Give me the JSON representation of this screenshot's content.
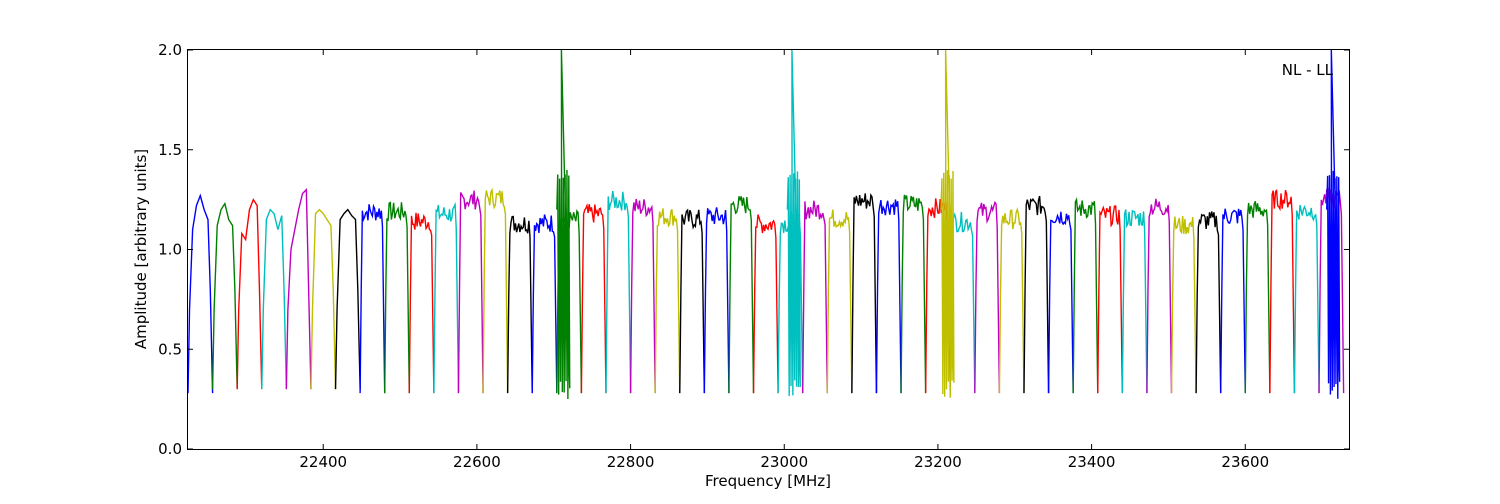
{
  "chart_data": {
    "type": "line",
    "title": "",
    "annotation": "NL - LL",
    "xlabel": "Frequency [MHz]",
    "ylabel": "Amplitude [arbitrary units]",
    "xlim": [
      22224,
      23735
    ],
    "ylim": [
      0.0,
      2.0
    ],
    "xticks": [
      22400,
      22600,
      22800,
      23000,
      23200,
      23400,
      23600
    ],
    "yticks": [
      0.0,
      0.5,
      1.0,
      1.5,
      2.0
    ],
    "xtick_labels": [
      "22400",
      "22600",
      "22800",
      "23000",
      "23200",
      "23400",
      "23600"
    ],
    "ytick_labels": [
      "0.0",
      "0.5",
      "1.0",
      "1.5",
      "2.0"
    ],
    "grid": false,
    "legend": "none",
    "color_cycle": [
      "#0000ff",
      "#008000",
      "#ff0000",
      "#00bfbf",
      "#bf00bf",
      "#bfbf00",
      "#000000"
    ],
    "band_start": 22224,
    "band_width": 32,
    "band_count": 47,
    "series": [
      {
        "color": "#0000ff",
        "x": [
          22224,
          22226,
          22230,
          22235,
          22240,
          22245,
          22250,
          22253,
          22256
        ],
        "y": [
          0.28,
          0.7,
          1.1,
          1.22,
          1.27,
          1.2,
          1.15,
          0.8,
          0.28
        ]
      },
      {
        "color": "#008000",
        "x": [
          22256,
          22258,
          22262,
          22267,
          22272,
          22277,
          22282,
          22285,
          22288
        ],
        "y": [
          0.3,
          0.7,
          1.12,
          1.2,
          1.23,
          1.15,
          1.12,
          0.8,
          0.3
        ]
      },
      {
        "color": "#ff0000",
        "x": [
          22288,
          22290,
          22294,
          22299,
          22304,
          22309,
          22314,
          22317,
          22320
        ],
        "y": [
          0.3,
          0.7,
          1.08,
          1.05,
          1.2,
          1.25,
          1.22,
          0.8,
          0.3
        ]
      },
      {
        "color": "#00bfbf",
        "x": [
          22320,
          22322,
          22326,
          22331,
          22336,
          22341,
          22346,
          22349,
          22352
        ],
        "y": [
          0.3,
          0.7,
          1.15,
          1.2,
          1.18,
          1.1,
          1.17,
          0.8,
          0.3
        ]
      },
      {
        "color": "#bf00bf",
        "x": [
          22352,
          22354,
          22358,
          22363,
          22368,
          22373,
          22378,
          22381,
          22384
        ],
        "y": [
          0.3,
          0.7,
          1.0,
          1.1,
          1.2,
          1.28,
          1.3,
          0.8,
          0.3
        ]
      },
      {
        "color": "#bfbf00",
        "x": [
          22384,
          22386,
          22390,
          22395,
          22400,
          22405,
          22410,
          22413,
          22416
        ],
        "y": [
          0.3,
          0.7,
          1.18,
          1.2,
          1.18,
          1.15,
          1.12,
          0.8,
          0.3
        ]
      },
      {
        "color": "#000000",
        "x": [
          22416,
          22418,
          22422,
          22427,
          22432,
          22437,
          22442,
          22445,
          22448
        ],
        "y": [
          0.3,
          0.7,
          1.15,
          1.18,
          1.2,
          1.17,
          1.15,
          0.8,
          0.3
        ]
      }
    ],
    "spikes": [
      {
        "color": "#008000",
        "x": 22710,
        "y": 2.0
      },
      {
        "color": "#00bfbf",
        "x": 23010,
        "y": 2.0
      },
      {
        "color": "#bfbf00",
        "x": 23210,
        "y": 2.0
      },
      {
        "color": "#0000ff",
        "x": 23712,
        "y": 2.0
      }
    ]
  }
}
